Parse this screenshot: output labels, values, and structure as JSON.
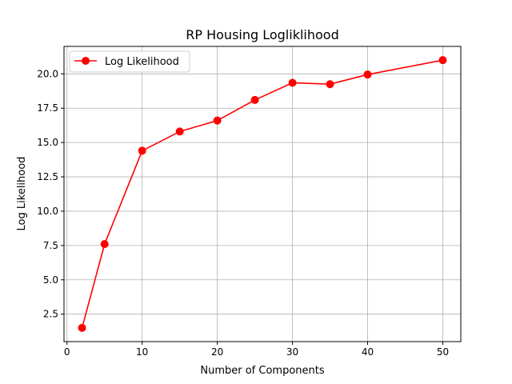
{
  "chart_data": {
    "type": "line",
    "title": "RP Housing Logliklihood",
    "xlabel": "Number of Components",
    "ylabel": "Log Likelihood",
    "xlim": [
      -0.4,
      52.4
    ],
    "ylim": [
      0.5,
      22.0
    ],
    "xticks": [
      0,
      10,
      20,
      30,
      40,
      50
    ],
    "xtick_labels": [
      "0",
      "10",
      "20",
      "30",
      "40",
      "50"
    ],
    "yticks": [
      2.5,
      5.0,
      7.5,
      10.0,
      12.5,
      15.0,
      17.5,
      20.0
    ],
    "ytick_labels": [
      "2.5",
      "5.0",
      "7.5",
      "10.0",
      "12.5",
      "15.0",
      "17.5",
      "20.0"
    ],
    "grid": true,
    "legend_position": "top-left",
    "series": [
      {
        "name": "Log Likelihood",
        "color": "#ff0000",
        "marker": "circle",
        "x": [
          2,
          5,
          10,
          15,
          20,
          25,
          30,
          35,
          40,
          50
        ],
        "y": [
          1.5,
          7.6,
          14.4,
          15.8,
          16.6,
          18.1,
          19.35,
          19.25,
          19.95,
          21.0
        ]
      }
    ]
  }
}
